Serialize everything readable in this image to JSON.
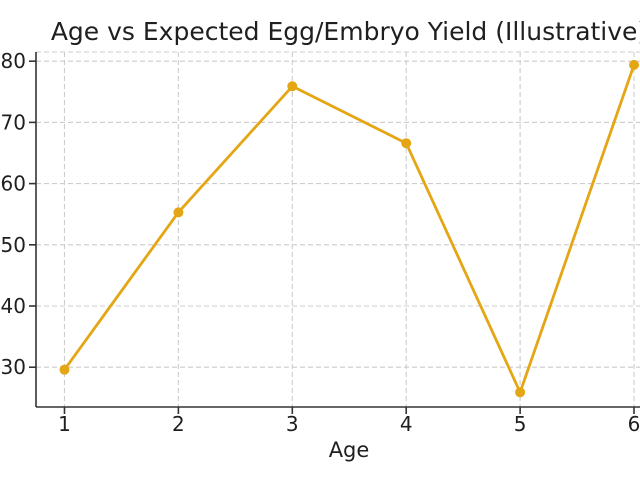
{
  "chart_data": {
    "type": "line",
    "title": "Age vs Expected Egg/Embryo Yield (Illustrative)",
    "xlabel": "Age",
    "ylabel": "",
    "x": [
      1,
      2,
      3,
      4,
      5,
      6
    ],
    "y": [
      29.6,
      55.3,
      75.9,
      66.6,
      25.9,
      79.4
    ],
    "xticks": [
      1,
      2,
      3,
      4,
      5,
      6
    ],
    "yticks": [
      30,
      40,
      50,
      60,
      70,
      80
    ],
    "xlim": [
      0.75,
      6.25
    ],
    "ylim": [
      23.5,
      81.5
    ],
    "grid": "dashed",
    "legend": "none",
    "marker": "circle",
    "colors": {
      "line": "#E4A614",
      "marker": "#E4A614",
      "grid": "#cccccc",
      "spine": "#333333",
      "text": "#1f1f1f",
      "background": "#ffffff"
    }
  }
}
